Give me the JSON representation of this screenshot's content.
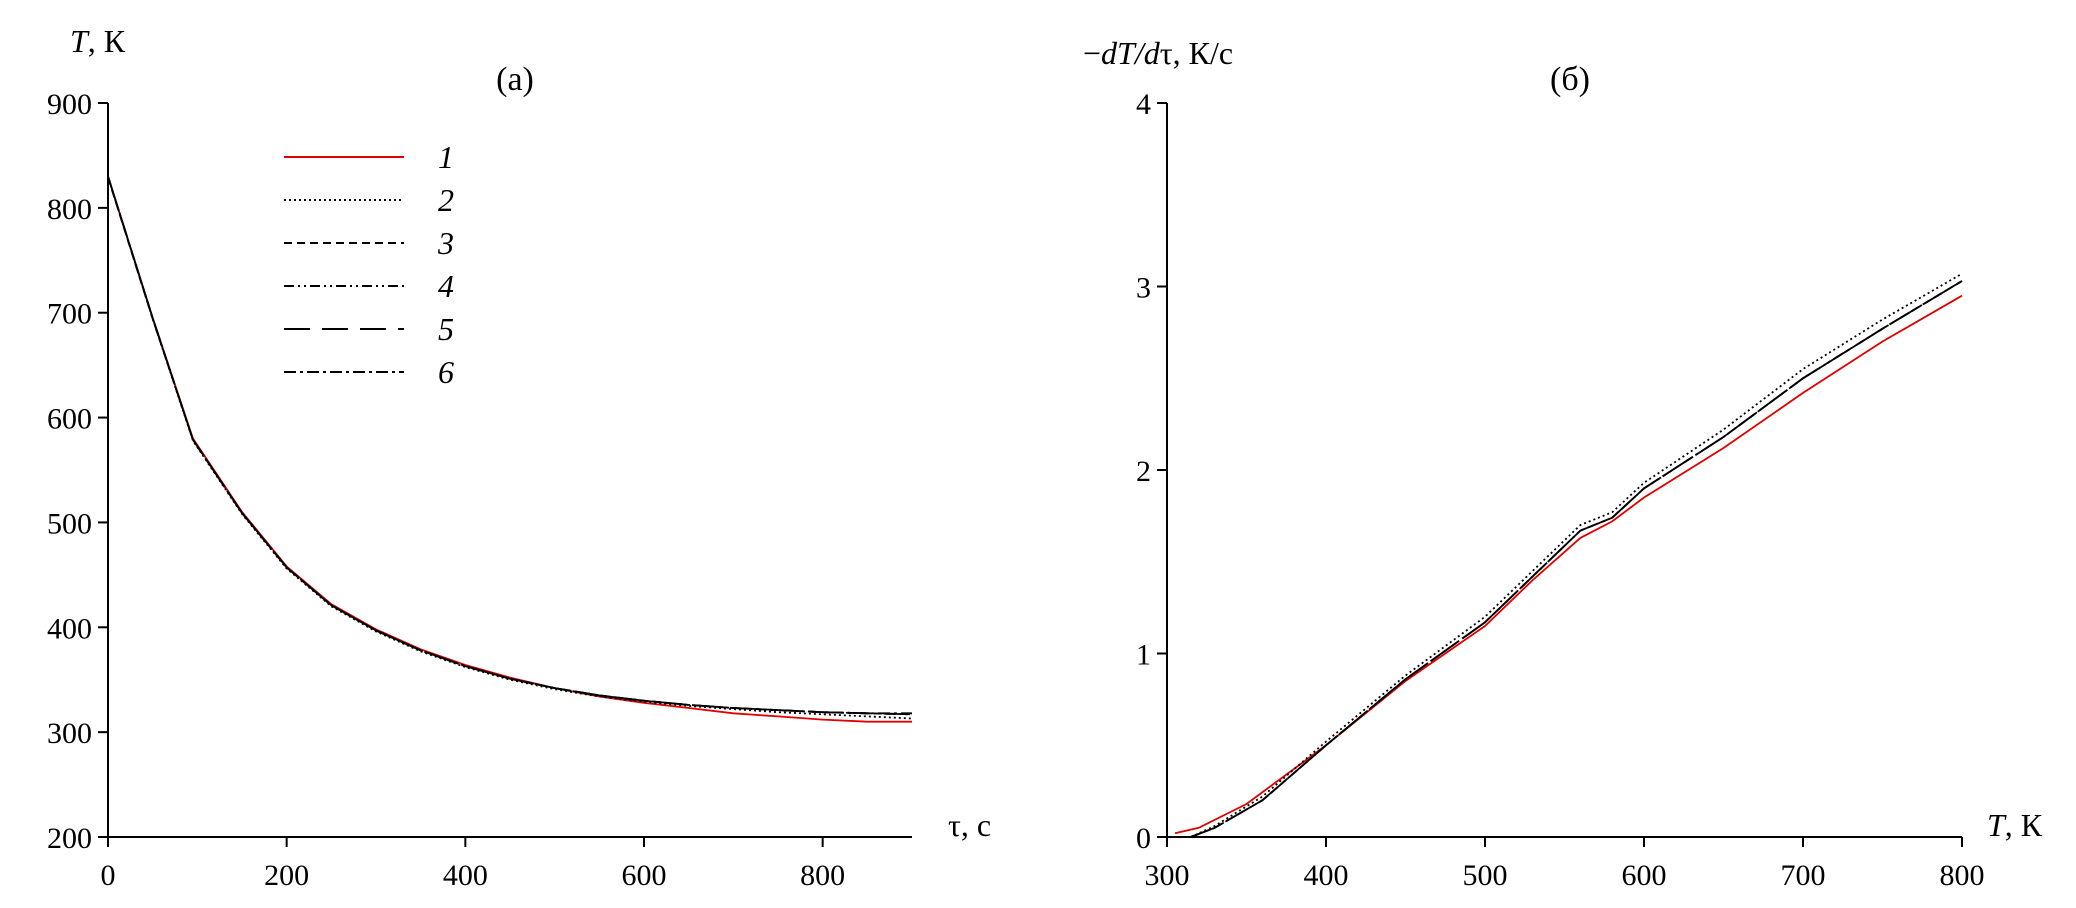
{
  "chart_data": [
    {
      "type": "line",
      "panel_label": "(а)",
      "ylabel_italic": "T",
      "ylabel_rest": ", К",
      "xlabel": "τ, с",
      "xlim": [
        0,
        900
      ],
      "ylim": [
        200,
        900
      ],
      "xticks": [
        0,
        200,
        400,
        600,
        800
      ],
      "yticks": [
        200,
        300,
        400,
        500,
        600,
        700,
        800,
        900
      ],
      "legend_position": "top-center",
      "series": [
        {
          "name": "1",
          "color": "#e00000",
          "dash": "solid",
          "x": [
            0,
            50,
            95,
            150,
            200,
            250,
            300,
            350,
            400,
            450,
            500,
            550,
            600,
            650,
            700,
            750,
            800,
            850,
            900
          ],
          "y": [
            830,
            695,
            580,
            510,
            458,
            422,
            398,
            379,
            364,
            352,
            342,
            334,
            328,
            323,
            318,
            315,
            312,
            310,
            310
          ]
        },
        {
          "name": "2",
          "color": "#000000",
          "dash": "dotted",
          "x": [
            0,
            50,
            95,
            150,
            200,
            250,
            300,
            350,
            400,
            450,
            500,
            550,
            600,
            650,
            700,
            750,
            800,
            850,
            900
          ],
          "y": [
            830,
            694,
            578,
            508,
            456,
            420,
            396,
            377,
            362,
            350,
            341,
            334,
            329,
            325,
            322,
            319,
            317,
            315,
            313
          ]
        },
        {
          "name": "3",
          "color": "#000000",
          "dash": "dashed",
          "x": [
            0,
            50,
            95,
            150,
            200,
            250,
            300,
            350,
            400,
            450,
            500,
            550,
            600,
            650,
            700,
            750,
            800,
            850,
            900
          ],
          "y": [
            829,
            694,
            579,
            509,
            457,
            421,
            397,
            378,
            363,
            351,
            342,
            335,
            330,
            326,
            323,
            321,
            319,
            318,
            317
          ]
        },
        {
          "name": "4",
          "color": "#000000",
          "dash": "dash-dot-dot",
          "x": [
            0,
            50,
            95,
            150,
            200,
            250,
            300,
            350,
            400,
            450,
            500,
            550,
            600,
            650,
            700,
            750,
            800,
            850,
            900
          ],
          "y": [
            830,
            695,
            579,
            509,
            457,
            421,
            397,
            378,
            363,
            351,
            342,
            335,
            330,
            326,
            323,
            321,
            319,
            318,
            317
          ]
        },
        {
          "name": "5",
          "color": "#000000",
          "dash": "long-dash",
          "x": [
            0,
            50,
            95,
            150,
            200,
            250,
            300,
            350,
            400,
            450,
            500,
            550,
            600,
            650,
            700,
            750,
            800,
            850,
            900
          ],
          "y": [
            830,
            695,
            579,
            509,
            457,
            421,
            397,
            378,
            363,
            351,
            342,
            335,
            330,
            326,
            323,
            321,
            319,
            318,
            317
          ]
        },
        {
          "name": "6",
          "color": "#000000",
          "dash": "dash-dot",
          "x": [
            0,
            50,
            95,
            150,
            200,
            250,
            300,
            350,
            400,
            450,
            500,
            550,
            600,
            650,
            700,
            750,
            800,
            850,
            900
          ],
          "y": [
            830,
            695,
            579,
            509,
            457,
            421,
            397,
            378,
            363,
            351,
            342,
            335,
            330,
            326,
            323,
            321,
            319,
            318,
            318
          ]
        }
      ]
    },
    {
      "type": "line",
      "panel_label": "(б)",
      "ylabel_prefix": "−",
      "ylabel_italic": "dT/d",
      "ylabel_rest": "τ, К/с",
      "xlabel_italic": "T",
      "xlabel_rest": ", К",
      "xlim": [
        300,
        800
      ],
      "ylim": [
        0,
        4
      ],
      "xticks": [
        300,
        400,
        500,
        600,
        700,
        800
      ],
      "yticks": [
        0,
        1,
        2,
        3,
        4
      ],
      "series": [
        {
          "name": "1",
          "color": "#e00000",
          "dash": "solid",
          "x": [
            305,
            320,
            350,
            400,
            450,
            500,
            530,
            560,
            580,
            600,
            650,
            700,
            750,
            800
          ],
          "y": [
            0.02,
            0.05,
            0.18,
            0.5,
            0.85,
            1.15,
            1.4,
            1.63,
            1.72,
            1.85,
            2.12,
            2.42,
            2.7,
            2.95
          ]
        },
        {
          "name": "2",
          "color": "#000000",
          "dash": "dotted",
          "x": [
            315,
            330,
            360,
            400,
            450,
            500,
            530,
            560,
            580,
            600,
            650,
            700,
            750,
            800
          ],
          "y": [
            0.0,
            0.06,
            0.22,
            0.52,
            0.88,
            1.2,
            1.45,
            1.7,
            1.77,
            1.93,
            2.22,
            2.55,
            2.82,
            3.07
          ]
        },
        {
          "name": "3",
          "color": "#000000",
          "dash": "dashed",
          "x": [
            315,
            330,
            360,
            400,
            450,
            500,
            530,
            560,
            580,
            600,
            650,
            700,
            750,
            800
          ],
          "y": [
            0.0,
            0.05,
            0.2,
            0.5,
            0.86,
            1.17,
            1.42,
            1.67,
            1.74,
            1.9,
            2.18,
            2.5,
            2.77,
            3.03
          ]
        },
        {
          "name": "4",
          "color": "#000000",
          "dash": "dash-dot-dot",
          "x": [
            315,
            330,
            360,
            400,
            450,
            500,
            530,
            560,
            580,
            600,
            650,
            700,
            750,
            800
          ],
          "y": [
            0.0,
            0.05,
            0.2,
            0.5,
            0.86,
            1.17,
            1.42,
            1.67,
            1.74,
            1.9,
            2.18,
            2.5,
            2.77,
            3.03
          ]
        },
        {
          "name": "5",
          "color": "#000000",
          "dash": "long-dash",
          "x": [
            315,
            330,
            360,
            400,
            450,
            500,
            530,
            560,
            580,
            600,
            650,
            700,
            750,
            800
          ],
          "y": [
            0.0,
            0.05,
            0.2,
            0.5,
            0.86,
            1.17,
            1.42,
            1.67,
            1.74,
            1.9,
            2.18,
            2.5,
            2.77,
            3.03
          ]
        },
        {
          "name": "6",
          "color": "#000000",
          "dash": "dash-dot",
          "x": [
            315,
            330,
            360,
            400,
            450,
            500,
            530,
            560,
            580,
            600,
            650,
            700,
            750,
            800
          ],
          "y": [
            0.0,
            0.05,
            0.2,
            0.5,
            0.86,
            1.17,
            1.42,
            1.67,
            1.74,
            1.9,
            2.18,
            2.5,
            2.77,
            3.03
          ]
        }
      ]
    }
  ]
}
